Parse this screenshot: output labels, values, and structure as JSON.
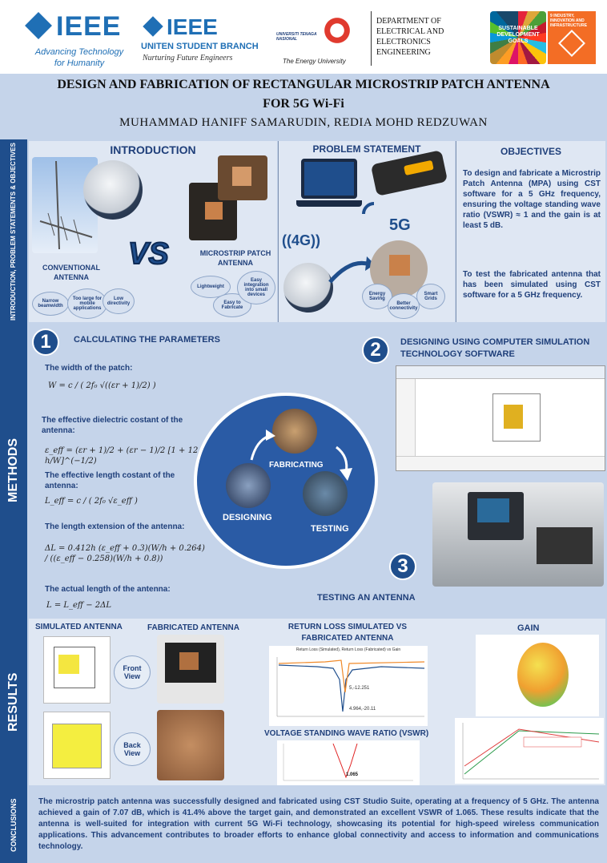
{
  "header": {
    "ieee_name": "IEEE",
    "ieee_tagline": "Advancing Technology for Humanity",
    "branch_name": "IEEE",
    "branch_subtitle": "UNITEN STUDENT BRANCH",
    "branch_tagline": "Nurturing Future Engineers",
    "uni_name": "UNIVERSITI TENAGA NASIONAL",
    "uni_tagline": "The Energy University",
    "department": "DEPARTMENT OF ELECTRICAL AND ELECTRONICS ENGINEERING",
    "sdg_label": "SUSTAINABLE DEVELOPMENT GOALS",
    "sdg_goal": "9 INDUSTRY, INNOVATION AND INFRASTRUCTURE"
  },
  "title": {
    "line1": "DESIGN AND FABRICATION OF RECTANGULAR MICROSTRIP PATCH ANTENNA",
    "line2": "FOR 5G Wi-Fi",
    "authors": "MUHAMMAD HANIFF SAMARUDIN, REDIA MOHD REDZUWAN"
  },
  "side_labels": {
    "intro": "INTRODUCTION, PROBLEM STATEMENTS & OBJECTIVES",
    "methods": "METHODS",
    "results": "RESULTS",
    "conclusions": "CONCLUSIONS"
  },
  "intro": {
    "heading": "INTRODUCTION",
    "conventional": "CONVENTIONAL ANTENNA",
    "vs": "VS",
    "microstrip": "MICROSTRIP PATCH ANTENNA",
    "conv_bubbles": [
      "Narrow beamwidth",
      "Too large for mobile applications",
      "Low directivity"
    ],
    "micro_bubbles": [
      "Lightweight",
      "Easy to Fabricate",
      "Easy integration into small devices"
    ]
  },
  "problem": {
    "heading": "PROBLEM STATEMENT",
    "g4": "((4G))",
    "g5": "5G",
    "bubbles": [
      "Energy Saving",
      "Better connectivity",
      "Smart Grids"
    ]
  },
  "objectives": {
    "heading": "OBJECTIVES",
    "p1": "To design and fabricate a Microstrip Patch Antenna (MPA) using CST software for a 5 GHz frequency, ensuring the voltage standing wave ratio (VSWR) ≈ 1 and the gain is at least 5 dB.",
    "p2": "To test the fabricated antenna that has been simulated using CST software for a 5 GHz frequency."
  },
  "methods": {
    "step1_num": "1",
    "step1": "CALCULATING THE PARAMETERS",
    "eq1_label": "The width of the patch:",
    "eq1": "W = c / ( 2f₀ √((εr + 1)/2) )",
    "eq2_label": "The effective dielectric costant of the antenna:",
    "eq2": "ε_eff = (εr + 1)/2 + (εr − 1)/2 [1 + 12 h/W]^(−1/2)",
    "eq3_label": "The effective length costant of the antenna:",
    "eq3": "L_eff = c / ( 2f₀ √ε_eff )",
    "eq4_label": "The length extension of the antenna:",
    "eq4": "ΔL = 0.412h (ε_eff + 0.3)(W/h + 0.264) / ((ε_eff − 0.258)(W/h + 0.8))",
    "eq5_label": "The actual length of the antenna:",
    "eq5": "L = L_eff − 2ΔL",
    "step2_num": "2",
    "step2": "DESIGNING USING COMPUTER SIMULATION TECHNOLOGY SOFTWARE",
    "step3_num": "3",
    "step3": "TESTING AN ANTENNA",
    "cycle": [
      "FABRICATING",
      "DESIGNING",
      "TESTING"
    ]
  },
  "results": {
    "simulated": "SIMULATED ANTENNA",
    "fabricated": "FABRICATED ANTENNA",
    "front_view": "Front View",
    "back_view": "Back View",
    "return_loss_heading": "RETURN LOSS SIMULATED VS FABRICATED ANTENNA",
    "return_loss_chart_title": "Return Loss (Simulated), Return Loss (Fabricated) vs Gain",
    "rl_marker1": "5,-12.251",
    "rl_marker2": "4.964,-20.11",
    "vswr_heading": "VOLTAGE STANDING WAVE RATIO (VSWR)",
    "vswr_value": "1.065",
    "gain_heading": "GAIN"
  },
  "conclusion": {
    "text": "The microstrip patch antenna was successfully designed and fabricated using CST Studio Suite, operating at a frequency of 5 GHz. The antenna achieved a gain of 7.07 dB, which is 41.4% above the target gain, and demonstrated an excellent VSWR of 1.065. These results indicate that the antenna is well-suited for integration with current 5G Wi-Fi technology, showcasing its potential for high-speed wireless communication applications. This advancement contributes to broader efforts to enhance global connectivity and access to information and communications technology."
  },
  "colors": {
    "navy": "#1f4e8c",
    "panel": "#dfe7f3",
    "bg": "#c5d4ea"
  }
}
